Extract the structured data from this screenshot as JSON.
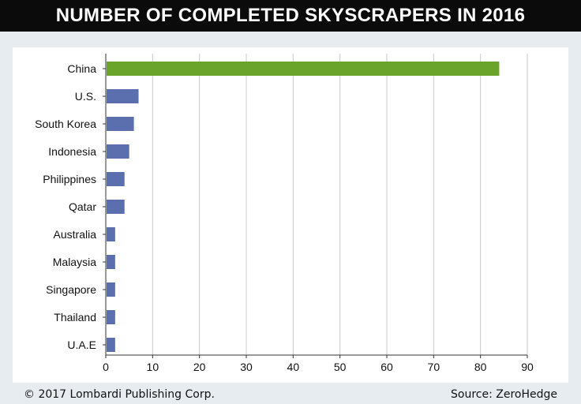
{
  "header": {
    "title": "NUMBER OF COMPLETED SKYSCRAPERS IN 2016"
  },
  "footer": {
    "copyright": "© 2017 Lombardi Publishing Corp.",
    "source": "Source: ZeroHedge"
  },
  "colors": {
    "highlight": "#6aa42a",
    "bar": "#5b6faf",
    "grid": "#c8c8c8"
  },
  "chart_data": {
    "type": "bar",
    "orientation": "horizontal",
    "title": "",
    "xlabel": "",
    "ylabel": "",
    "categories": [
      "China",
      "U.S.",
      "South Korea",
      "Indonesia",
      "Philippines",
      "Qatar",
      "Australia",
      "Malaysia",
      "Singapore",
      "Thailand",
      "U.A.E"
    ],
    "values": [
      84,
      7,
      6,
      5,
      4,
      4,
      2,
      2,
      2,
      2,
      2
    ],
    "highlight_category": "China",
    "xlim": [
      0,
      90
    ],
    "xticks": [
      0,
      10,
      20,
      30,
      40,
      50,
      60,
      70,
      80,
      90
    ],
    "grid": true
  }
}
